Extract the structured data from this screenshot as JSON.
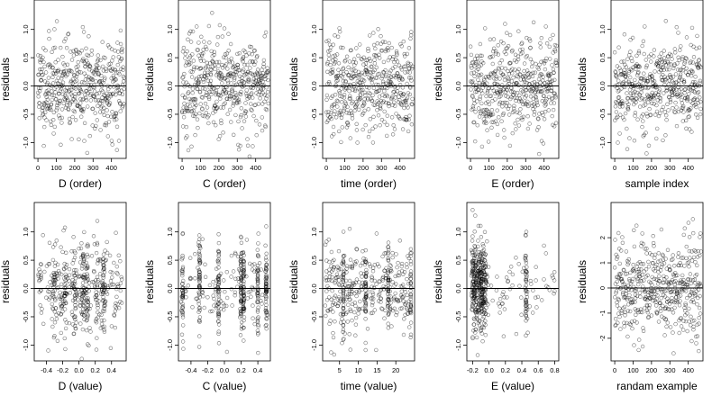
{
  "chart_data": [
    {
      "type": "scatter",
      "xlabel": "D (order)",
      "ylabel": "residuals",
      "xticks": [
        0,
        100,
        200,
        300,
        400
      ],
      "yticks": [
        -1.0,
        -0.5,
        0.0,
        0.5,
        1.0
      ],
      "xlim": [
        -20,
        480
      ],
      "ylim": [
        -1.28,
        1.52
      ],
      "hline": 0,
      "pattern": {
        "kind": "order",
        "n": 470,
        "seed": 11,
        "sd": 0.42
      }
    },
    {
      "type": "scatter",
      "xlabel": "C (order)",
      "ylabel": "residuals",
      "xticks": [
        0,
        100,
        200,
        300,
        400
      ],
      "yticks": [
        -1.0,
        -0.5,
        0.0,
        0.5,
        1.0
      ],
      "xlim": [
        -20,
        480
      ],
      "ylim": [
        -1.28,
        1.52
      ],
      "hline": 0,
      "pattern": {
        "kind": "order",
        "n": 470,
        "seed": 23,
        "sd": 0.42
      }
    },
    {
      "type": "scatter",
      "xlabel": "time (order)",
      "ylabel": "residuals",
      "xticks": [
        0,
        100,
        200,
        300,
        400
      ],
      "yticks": [
        -1.0,
        -0.5,
        0.0,
        0.5,
        1.0
      ],
      "xlim": [
        -20,
        480
      ],
      "ylim": [
        -1.28,
        1.52
      ],
      "hline": 0,
      "pattern": {
        "kind": "order",
        "n": 470,
        "seed": 37,
        "sd": 0.42
      }
    },
    {
      "type": "scatter",
      "xlabel": "E (order)",
      "ylabel": "residuals",
      "xticks": [
        0,
        100,
        200,
        300,
        400
      ],
      "yticks": [
        -1.0,
        -0.5,
        0.0,
        0.5,
        1.0
      ],
      "xlim": [
        -20,
        480
      ],
      "ylim": [
        -1.28,
        1.52
      ],
      "hline": 0,
      "pattern": {
        "kind": "order",
        "n": 470,
        "seed": 41,
        "sd": 0.42
      }
    },
    {
      "type": "scatter",
      "xlabel": "sample index",
      "ylabel": "residuals",
      "xticks": [
        0,
        100,
        200,
        300,
        400
      ],
      "yticks": [
        -1.0,
        -0.5,
        0.0,
        0.5,
        1.0
      ],
      "xlim": [
        -20,
        480
      ],
      "ylim": [
        -1.28,
        1.52
      ],
      "hline": 0,
      "pattern": {
        "kind": "order",
        "n": 470,
        "seed": 53,
        "sd": 0.42
      }
    },
    {
      "type": "scatter",
      "xlabel": "D (value)",
      "ylabel": "residuals",
      "xticks": [
        -0.4,
        -0.2,
        0.0,
        0.2,
        0.4
      ],
      "xtick_labels": [
        "-0.4",
        "-0.2",
        "0.0",
        "0.2",
        "0.4"
      ],
      "yticks": [
        -1.0,
        -0.5,
        0.0,
        0.5,
        1.0
      ],
      "xlim": [
        -0.55,
        0.58
      ],
      "ylim": [
        -1.28,
        1.52
      ],
      "hline": 0,
      "pattern": {
        "kind": "value",
        "n": 470,
        "seed": 61,
        "sd": 0.42,
        "xmin": -0.5,
        "xmax": 0.53,
        "clusters": [
          -0.3,
          -0.17,
          -0.05,
          0.05,
          0.1,
          0.22,
          0.3
        ],
        "cluster_frac": 0.45,
        "jitter": 0.012
      }
    },
    {
      "type": "scatter",
      "xlabel": "C (value)",
      "ylabel": "residuals",
      "xticks": [
        -0.4,
        -0.2,
        0.0,
        0.2,
        0.4
      ],
      "xtick_labels": [
        "-0.4",
        "-0.2",
        "0.0",
        "0.2",
        "0.4"
      ],
      "yticks": [
        -1.0,
        -0.5,
        0.0,
        0.5,
        1.0
      ],
      "xlim": [
        -0.55,
        0.55
      ],
      "ylim": [
        -1.28,
        1.52
      ],
      "hline": 0,
      "pattern": {
        "kind": "value",
        "n": 470,
        "seed": 71,
        "sd": 0.42,
        "xmin": -0.52,
        "xmax": 0.52,
        "clusters": [
          -0.5,
          -0.3,
          -0.07,
          0.2,
          0.23,
          0.4,
          0.5
        ],
        "cluster_frac": 0.75,
        "jitter": 0.004
      }
    },
    {
      "type": "scatter",
      "xlabel": "time (value)",
      "ylabel": "residuals",
      "xticks": [
        5,
        10,
        15,
        20
      ],
      "xtick_labels": [
        "5",
        "10",
        "15",
        "20"
      ],
      "yticks": [
        -1.0,
        -0.5,
        0.0,
        0.5,
        1.0
      ],
      "xlim": [
        0.5,
        25
      ],
      "ylim": [
        -1.28,
        1.52
      ],
      "hline": 0,
      "pattern": {
        "kind": "value",
        "n": 470,
        "seed": 83,
        "sd": 0.42,
        "xmin": 1,
        "xmax": 24,
        "clusters": [
          6,
          12,
          18,
          24
        ],
        "cluster_frac": 0.3,
        "jitter": 0.05
      }
    },
    {
      "type": "scatter",
      "xlabel": "E (value)",
      "ylabel": "residuals",
      "xticks": [
        -0.2,
        0.0,
        0.2,
        0.4,
        0.6,
        0.8
      ],
      "xtick_labels": [
        "-0.2",
        "0.0",
        "0.2",
        "0.4",
        "0.6",
        "0.8"
      ],
      "yticks": [
        -1.0,
        -0.5,
        0.0,
        0.5,
        1.0
      ],
      "xlim": [
        -0.27,
        0.85
      ],
      "ylim": [
        -1.28,
        1.52
      ],
      "hline": 0,
      "pattern": {
        "kind": "value",
        "n": 470,
        "seed": 97,
        "sd": 0.42,
        "xmin": -0.22,
        "xmax": 0.8,
        "clusters": [
          -0.2,
          -0.18,
          -0.16,
          -0.14,
          -0.12,
          -0.1,
          -0.08,
          -0.06,
          -0.04,
          0.45
        ],
        "cluster_frac": 0.88,
        "jitter": 0.006
      }
    },
    {
      "type": "scatter",
      "xlabel": "randam example",
      "ylabel": "residuals",
      "xticks": [
        0,
        100,
        200,
        300,
        400
      ],
      "yticks": [
        -2,
        -1,
        0,
        1,
        2
      ],
      "xlim": [
        -20,
        480
      ],
      "ylim": [
        -2.9,
        3.4
      ],
      "hline": 0,
      "pattern": {
        "kind": "order",
        "n": 470,
        "seed": 109,
        "sd": 1.0
      }
    }
  ]
}
